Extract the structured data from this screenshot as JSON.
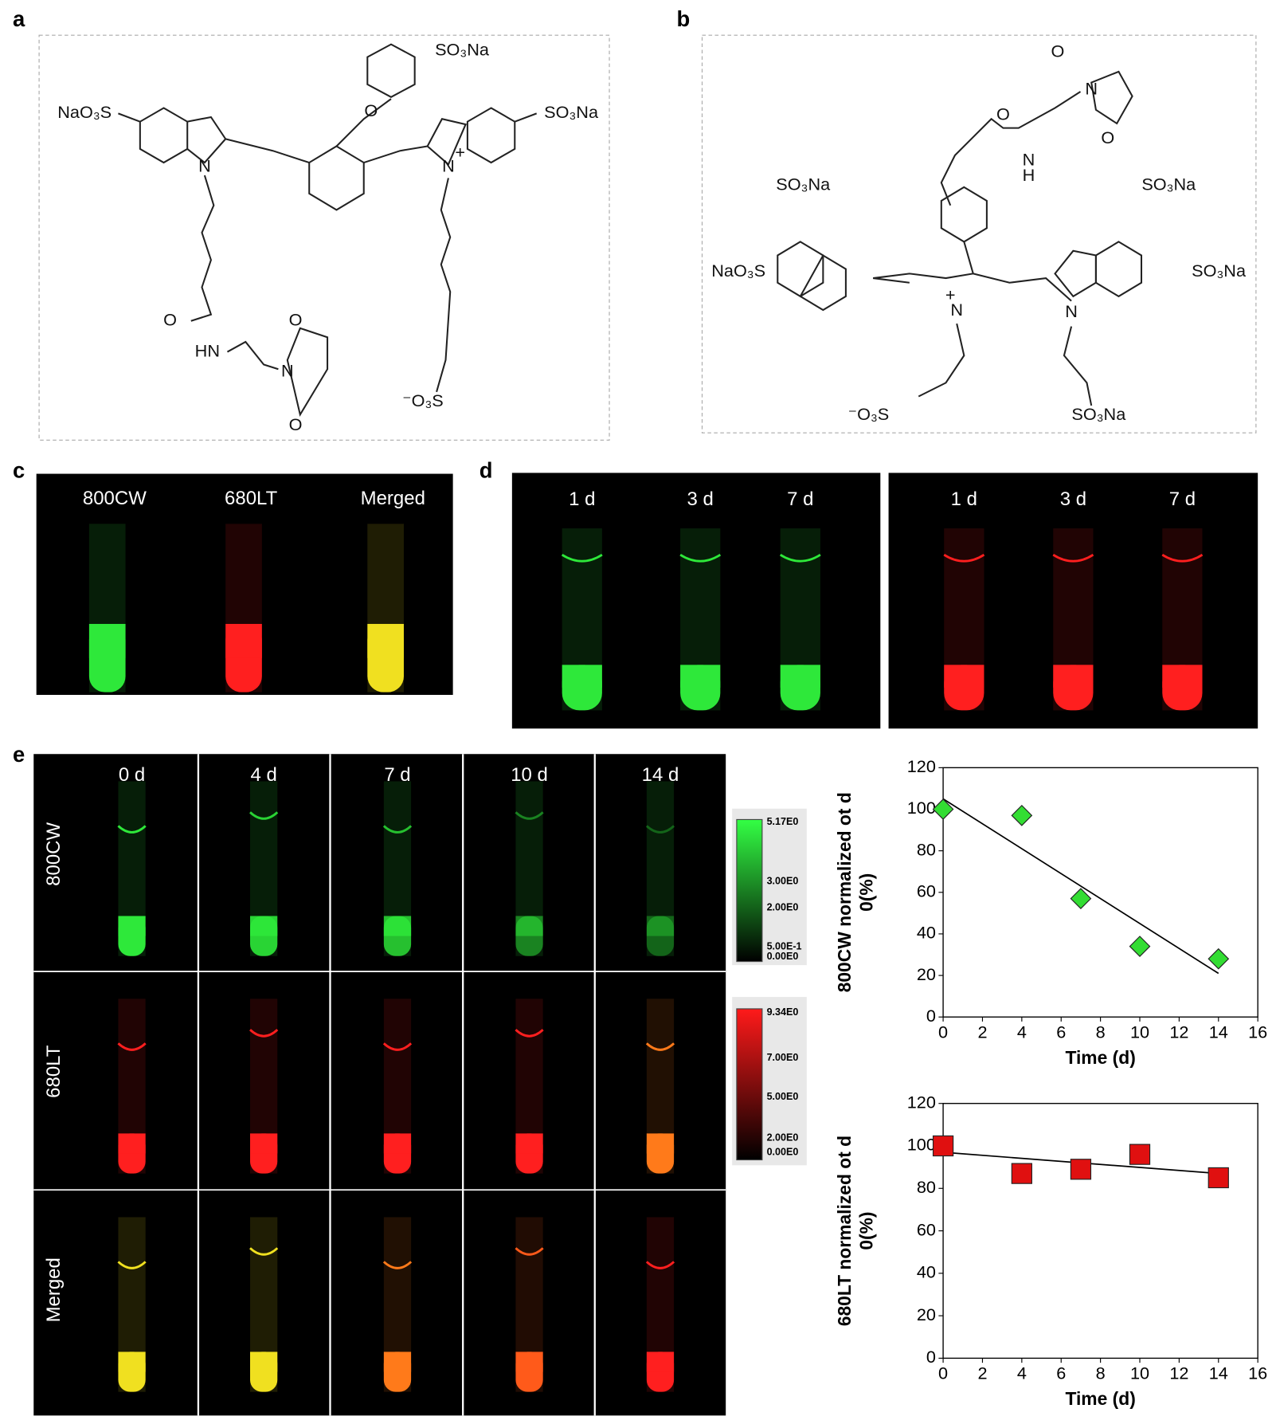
{
  "panel_labels": [
    "a",
    "b",
    "c",
    "d",
    "e"
  ],
  "structure_a": {
    "atoms": [
      "SO₃Na",
      "NaO₃S",
      "O",
      "SO₃Na",
      "N",
      "N",
      "+",
      "O",
      "HN",
      "N",
      "O",
      "O",
      "⁻O₃S"
    ]
  },
  "structure_b": {
    "atoms": [
      "O",
      "N",
      "O",
      "O",
      "N",
      "H",
      "SO₃Na",
      "SO₃Na",
      "NaO₃S",
      "SO₃Na",
      "N",
      "+",
      "N",
      "⁻O₃S",
      "SO₃Na"
    ]
  },
  "panel_c": {
    "labels": [
      "800CW",
      "680LT",
      "Merged"
    ]
  },
  "panel_d": {
    "labels": [
      "1 d",
      "3 d",
      "7 d",
      "1 d",
      "3 d",
      "7 d"
    ]
  },
  "panel_e": {
    "columns": [
      "0 d",
      "4 d",
      "7 d",
      "10 d",
      "14 d"
    ],
    "rows": [
      "800CW",
      "680LT",
      "Merged"
    ],
    "colorbars": [
      {
        "ticks": [
          "5.17E0",
          "3.00E0",
          "2.00E0",
          "5.00E-1",
          "0.00E0"
        ]
      },
      {
        "ticks": [
          "9.34E0",
          "7.00E0",
          "5.00E0",
          "2.00E0",
          "0.00E0"
        ]
      }
    ]
  },
  "chart_data": [
    {
      "type": "scatter",
      "x": [
        0,
        4,
        7,
        10,
        14
      ],
      "values": [
        100,
        97,
        57,
        34,
        28
      ],
      "color": "#33dd33",
      "marker": "diamond",
      "trend": {
        "x": [
          0,
          14
        ],
        "values": [
          105,
          21
        ]
      },
      "xlabel": "Time (d)",
      "ylabel": [
        "800CW normalized ot d",
        "0(%)"
      ],
      "xlim": [
        0,
        16
      ],
      "xticks": [
        0,
        2,
        4,
        6,
        8,
        10,
        12,
        14,
        16
      ],
      "ylim": [
        0,
        120
      ],
      "yticks": [
        0,
        20,
        40,
        60,
        80,
        100,
        120
      ]
    },
    {
      "type": "scatter",
      "x": [
        0,
        4,
        7,
        10,
        14
      ],
      "values": [
        100,
        87,
        89,
        96,
        85
      ],
      "color": "#e01010",
      "marker": "square",
      "trend": {
        "x": [
          0,
          14
        ],
        "values": [
          97,
          87
        ]
      },
      "xlabel": "Time (d)",
      "ylabel": [
        "680LT normalized ot d",
        "0(%)"
      ],
      "xlim": [
        0,
        16
      ],
      "xticks": [
        0,
        2,
        4,
        6,
        8,
        10,
        12,
        14,
        16
      ],
      "ylim": [
        0,
        120
      ],
      "yticks": [
        0,
        20,
        40,
        60,
        80,
        100,
        120
      ]
    }
  ]
}
